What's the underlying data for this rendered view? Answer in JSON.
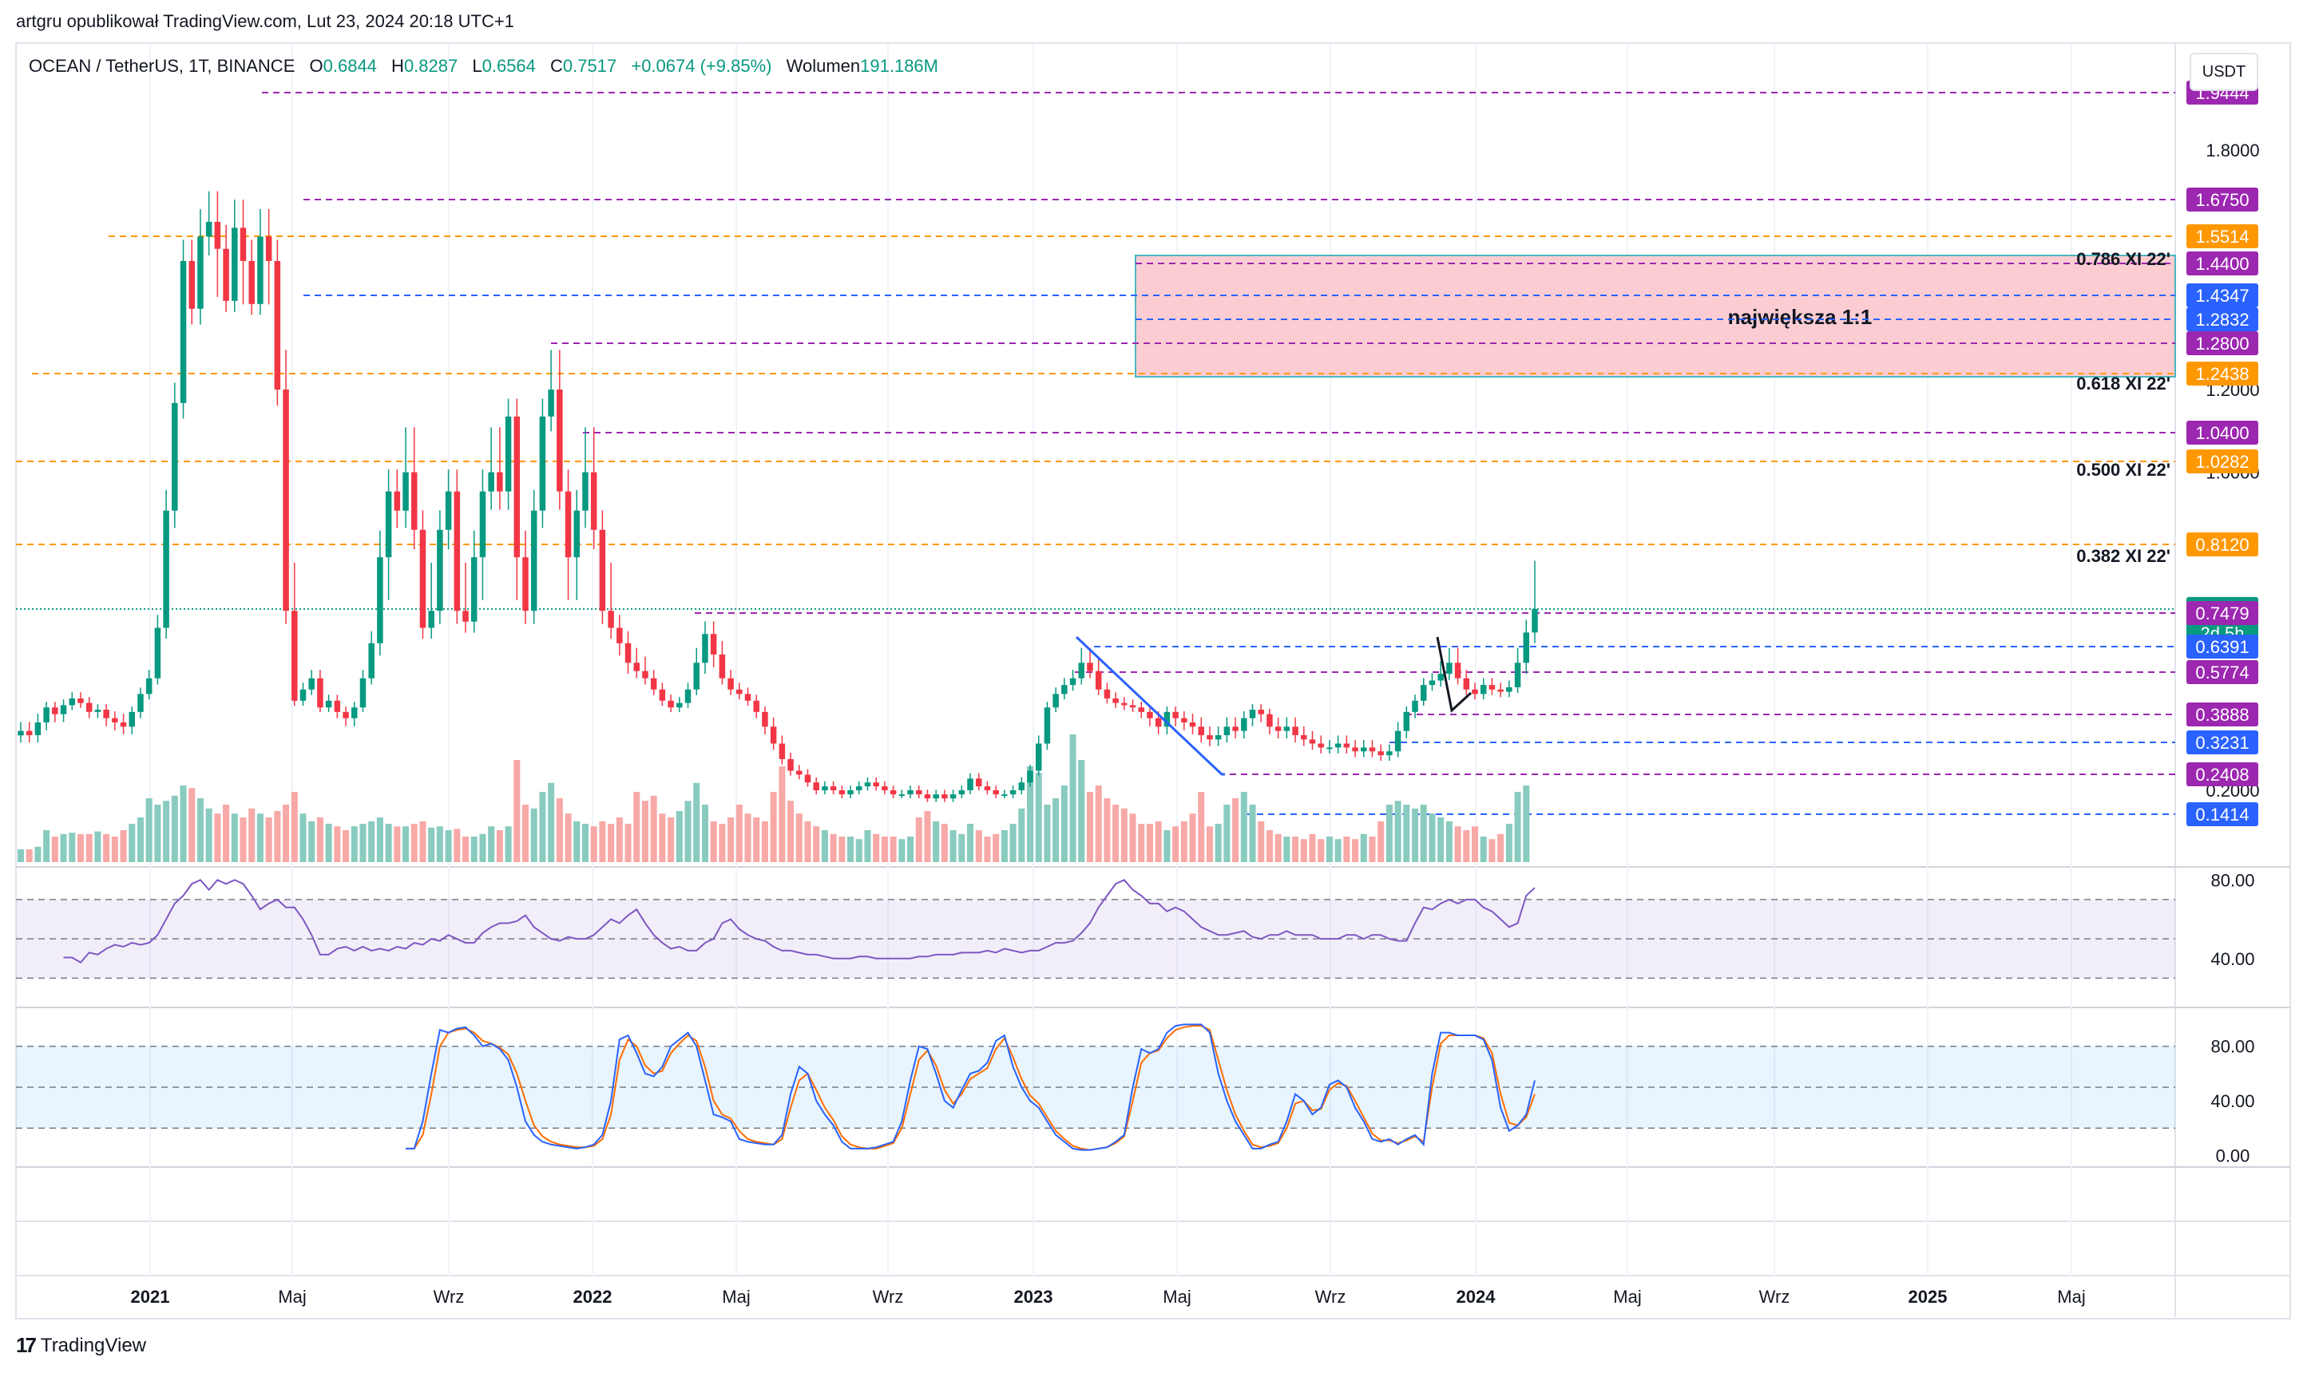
{
  "header": {
    "publisher": "artgru opublikował TradingView.com, Lut 23, 2024 20:18 UTC+1",
    "symbol": "OCEAN / TetherUS, 1T, BINANCE",
    "open_label": "O",
    "open": "0.6844",
    "high_label": "H",
    "high": "0.8287",
    "low_label": "L",
    "low": "0.6564",
    "close_label": "C",
    "close": "0.7517",
    "change": "+0.0674 (+9.85%)",
    "volume_label": "Wolumen",
    "volume": "191.186M",
    "currency": "USDT"
  },
  "footer": {
    "logo_mark": "17",
    "logo_text": "TradingView"
  },
  "colors": {
    "up": "#089981",
    "down": "#f23645",
    "up_vol": "#89cbbf",
    "down_vol": "#f7a9a7",
    "orange": "#ff9800",
    "purple": "#9c27b0",
    "blue": "#2962ff",
    "zone_fill": "#fbcdd2",
    "zone_border": "#4bb5c0",
    "rsi": "#7e57c2",
    "stoch_k": "#2962ff",
    "stoch_d": "#ff6d00"
  },
  "chart_data": {
    "type": "candlestick",
    "timeframe": "1T",
    "x_axis": {
      "labels": [
        "2021",
        "Maj",
        "Wrz",
        "2022",
        "Maj",
        "Wrz",
        "2023",
        "Maj",
        "Wrz",
        "2024",
        "Maj",
        "Wrz",
        "2025",
        "Maj"
      ]
    },
    "y_axis": {
      "ticks": [
        "1.8000",
        "1.2000",
        "1.0000",
        "0.2000"
      ],
      "range": [
        0.06,
        2.0
      ]
    },
    "price_labels": [
      {
        "value": "1.9444",
        "kind": "purple"
      },
      {
        "value": "1.6750",
        "kind": "purple"
      },
      {
        "value": "1.5514",
        "kind": "orange"
      },
      {
        "value": "1.4400",
        "kind": "purple"
      },
      {
        "value": "1.4347",
        "kind": "blue"
      },
      {
        "value": "1.2832",
        "kind": "blue"
      },
      {
        "value": "1.2800",
        "kind": "purple"
      },
      {
        "value": "1.2438",
        "kind": "orange"
      },
      {
        "value": "1.0400",
        "kind": "purple"
      },
      {
        "value": "1.0282",
        "kind": "orange"
      },
      {
        "value": "0.8120",
        "kind": "orange"
      },
      {
        "value": "0.7517",
        "kind": "green",
        "sub": "2d 5h"
      },
      {
        "value": "0.7479",
        "kind": "purple"
      },
      {
        "value": "0.6391",
        "kind": "blue"
      },
      {
        "value": "0.5774",
        "kind": "purple"
      },
      {
        "value": "0.3888",
        "kind": "purple"
      },
      {
        "value": "0.3231",
        "kind": "blue"
      },
      {
        "value": "0.2408",
        "kind": "purple"
      },
      {
        "value": "0.1414",
        "kind": "blue"
      }
    ],
    "fib_labels": [
      "0.786 XI 22'",
      "0.618 XI 22'",
      "0.500 XI 22'",
      "0.382 XI 22'"
    ],
    "zone_label": "największa 1:1",
    "rsi": {
      "ticks": [
        "80.00",
        "40.00"
      ],
      "upper": 70,
      "lower": 30,
      "range": [
        20,
        85
      ]
    },
    "stoch": {
      "ticks": [
        "80.00",
        "40.00",
        "0.00"
      ],
      "upper": 80,
      "lower": 20,
      "range": [
        -5,
        105
      ]
    },
    "closes": [
      0.35,
      0.34,
      0.37,
      0.42,
      0.39,
      0.43,
      0.46,
      0.44,
      0.4,
      0.41,
      0.38,
      0.37,
      0.36,
      0.4,
      0.48,
      0.55,
      0.7,
      0.9,
      1.15,
      1.45,
      1.35,
      1.55,
      1.6,
      1.5,
      1.4,
      1.58,
      1.45,
      1.38,
      1.55,
      1.45,
      1.2,
      0.75,
      0.45,
      0.5,
      0.55,
      0.42,
      0.45,
      0.4,
      0.38,
      0.42,
      0.55,
      0.65,
      0.8,
      0.95,
      0.9,
      1.0,
      0.85,
      0.7,
      0.75,
      0.85,
      0.95,
      0.75,
      0.72,
      0.8,
      0.95,
      1.0,
      0.95,
      1.1,
      0.8,
      0.75,
      0.9,
      1.1,
      1.2,
      0.95,
      0.8,
      0.9,
      1.0,
      0.85,
      0.75,
      0.7,
      0.65,
      0.6,
      0.58,
      0.55,
      0.5,
      0.45,
      0.42,
      0.44,
      0.5,
      0.6,
      0.68,
      0.62,
      0.55,
      0.5,
      0.48,
      0.45,
      0.4,
      0.36,
      0.32,
      0.28,
      0.25,
      0.24,
      0.22,
      0.2,
      0.21,
      0.2,
      0.19,
      0.2,
      0.21,
      0.22,
      0.21,
      0.2,
      0.19,
      0.19,
      0.2,
      0.19,
      0.18,
      0.19,
      0.18,
      0.19,
      0.2,
      0.23,
      0.21,
      0.2,
      0.19,
      0.19,
      0.2,
      0.22,
      0.25,
      0.32,
      0.42,
      0.48,
      0.52,
      0.55,
      0.6,
      0.58,
      0.5,
      0.46,
      0.44,
      0.43,
      0.42,
      0.4,
      0.38,
      0.36,
      0.4,
      0.38,
      0.37,
      0.36,
      0.34,
      0.33,
      0.34,
      0.36,
      0.35,
      0.38,
      0.41,
      0.39,
      0.36,
      0.35,
      0.36,
      0.34,
      0.33,
      0.32,
      0.31,
      0.31,
      0.32,
      0.31,
      0.3,
      0.31,
      0.3,
      0.29,
      0.3,
      0.35,
      0.4,
      0.45,
      0.52,
      0.54,
      0.57,
      0.6,
      0.55,
      0.5,
      0.48,
      0.52,
      0.5,
      0.49,
      0.51,
      0.6,
      0.6849,
      0.7517
    ],
    "volumes": [
      0.1,
      0.1,
      0.12,
      0.25,
      0.2,
      0.22,
      0.23,
      0.22,
      0.22,
      0.24,
      0.22,
      0.2,
      0.25,
      0.3,
      0.35,
      0.5,
      0.45,
      0.48,
      0.52,
      0.6,
      0.58,
      0.5,
      0.42,
      0.38,
      0.45,
      0.38,
      0.35,
      0.42,
      0.38,
      0.35,
      0.4,
      0.45,
      0.55,
      0.38,
      0.32,
      0.35,
      0.3,
      0.28,
      0.25,
      0.28,
      0.3,
      0.32,
      0.35,
      0.3,
      0.28,
      0.28,
      0.3,
      0.32,
      0.27,
      0.28,
      0.25,
      0.26,
      0.2,
      0.2,
      0.22,
      0.28,
      0.25,
      0.28,
      0.8,
      0.45,
      0.42,
      0.55,
      0.62,
      0.5,
      0.38,
      0.32,
      0.3,
      0.28,
      0.32,
      0.3,
      0.35,
      0.3,
      0.55,
      0.48,
      0.52,
      0.38,
      0.35,
      0.4,
      0.48,
      0.62,
      0.45,
      0.32,
      0.3,
      0.35,
      0.45,
      0.38,
      0.35,
      0.32,
      0.55,
      0.75,
      0.48,
      0.38,
      0.32,
      0.28,
      0.25,
      0.22,
      0.2,
      0.2,
      0.18,
      0.25,
      0.22,
      0.2,
      0.2,
      0.18,
      0.2,
      0.35,
      0.4,
      0.32,
      0.3,
      0.25,
      0.22,
      0.3,
      0.25,
      0.2,
      0.22,
      0.25,
      0.3,
      0.42,
      0.75,
      0.7,
      0.45,
      0.5,
      0.6,
      1.0,
      0.8,
      0.55,
      0.6,
      0.5,
      0.45,
      0.42,
      0.38,
      0.3,
      0.3,
      0.32,
      0.25,
      0.28,
      0.32,
      0.38,
      0.55,
      0.28,
      0.3,
      0.45,
      0.5,
      0.55,
      0.45,
      0.32,
      0.25,
      0.22,
      0.2,
      0.2,
      0.18,
      0.22,
      0.18,
      0.2,
      0.18,
      0.2,
      0.18,
      0.22,
      0.2,
      0.32,
      0.45,
      0.48,
      0.45,
      0.42,
      0.45,
      0.38,
      0.35,
      0.32,
      0.28,
      0.25,
      0.28,
      0.2,
      0.18,
      0.22,
      0.3,
      0.55,
      0.6
    ],
    "rsi_values": [
      40.5,
      40.5,
      38,
      43,
      42,
      45,
      47,
      46,
      48,
      47,
      48,
      52,
      60,
      68,
      72,
      78,
      80,
      75,
      80,
      78,
      80,
      78,
      72,
      65,
      68,
      70,
      66,
      66,
      60,
      52,
      42,
      42,
      45,
      46,
      44,
      46,
      44,
      45,
      44,
      46,
      45,
      48,
      47,
      50,
      49,
      52,
      50,
      48,
      48,
      53,
      56,
      58,
      58,
      59,
      62,
      56,
      53,
      50,
      49,
      51,
      50,
      50,
      52,
      56,
      60,
      58,
      62,
      65,
      58,
      52,
      48,
      45,
      46,
      44,
      44,
      48,
      50,
      58,
      60,
      55,
      52,
      50,
      49,
      46,
      44,
      44,
      43,
      42,
      42,
      41,
      40,
      40,
      40,
      41,
      41,
      40,
      40,
      40,
      40,
      40,
      41,
      41,
      42,
      42,
      42,
      43,
      43,
      43,
      44,
      43,
      45,
      44,
      43,
      44,
      44,
      46,
      48,
      48,
      49,
      53,
      58,
      66,
      72,
      78,
      80,
      75,
      72,
      68,
      68,
      64,
      66,
      64,
      60,
      56,
      54,
      52,
      52,
      53,
      54,
      51,
      50,
      52,
      52,
      54,
      52,
      52,
      52,
      50,
      50,
      50,
      52,
      52,
      50,
      52,
      52,
      50,
      49,
      49,
      58,
      66,
      65,
      68,
      70,
      68,
      70,
      70,
      66,
      64,
      60,
      56,
      58,
      72,
      76
    ],
    "stoch_k": [
      5,
      5,
      25,
      60,
      92,
      90,
      93,
      94,
      88,
      80,
      82,
      78,
      70,
      50,
      25,
      15,
      10,
      8,
      7,
      6,
      5,
      6,
      8,
      15,
      40,
      85,
      88,
      75,
      60,
      58,
      65,
      80,
      85,
      90,
      80,
      55,
      30,
      28,
      25,
      12,
      10,
      9,
      8,
      8,
      15,
      45,
      65,
      60,
      40,
      30,
      22,
      10,
      5,
      5,
      5,
      6,
      8,
      10,
      25,
      55,
      80,
      78,
      60,
      40,
      35,
      48,
      60,
      62,
      68,
      84,
      88,
      65,
      50,
      40,
      35,
      25,
      15,
      10,
      5,
      4,
      4,
      5,
      6,
      10,
      15,
      50,
      78,
      75,
      78,
      90,
      95,
      96,
      96,
      96,
      90,
      60,
      40,
      25,
      15,
      5,
      5,
      8,
      10,
      25,
      45,
      40,
      30,
      35,
      52,
      55,
      50,
      35,
      25,
      12,
      10,
      12,
      8,
      12,
      15,
      8,
      60,
      90,
      90,
      88,
      88,
      88,
      85,
      70,
      35,
      18,
      22,
      30,
      55
    ],
    "stoch_d": [
      5,
      5,
      15,
      45,
      80,
      90,
      92,
      93,
      90,
      84,
      82,
      79,
      74,
      60,
      40,
      22,
      14,
      10,
      8,
      7,
      6,
      6,
      7,
      12,
      30,
      70,
      85,
      80,
      66,
      60,
      62,
      75,
      82,
      88,
      84,
      65,
      40,
      30,
      27,
      18,
      12,
      10,
      9,
      8,
      12,
      35,
      55,
      60,
      48,
      35,
      26,
      14,
      8,
      6,
      5,
      5,
      7,
      9,
      20,
      45,
      70,
      77,
      66,
      48,
      38,
      45,
      56,
      60,
      64,
      78,
      86,
      72,
      56,
      44,
      38,
      28,
      18,
      12,
      7,
      5,
      4,
      5,
      6,
      9,
      14,
      40,
      68,
      75,
      77,
      86,
      92,
      94,
      95,
      95,
      92,
      70,
      48,
      30,
      18,
      8,
      6,
      7,
      9,
      20,
      38,
      40,
      33,
      34,
      48,
      53,
      51,
      40,
      28,
      16,
      11,
      11,
      9,
      11,
      14,
      10,
      50,
      82,
      88,
      88,
      88,
      88,
      86,
      75,
      45,
      24,
      22,
      28,
      45
    ]
  }
}
